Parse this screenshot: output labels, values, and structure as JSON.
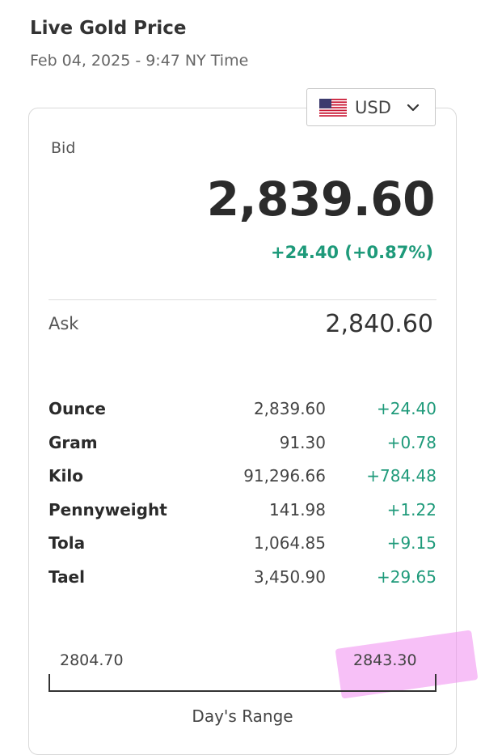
{
  "header": {
    "title": "Live Gold Price",
    "subtitle": "Feb 04, 2025 - 9:47 NY Time"
  },
  "currency": {
    "code": "USD",
    "flag_icon": "us-flag-icon",
    "dropdown_icon": "chevron-down-icon"
  },
  "quote": {
    "bid_label": "Bid",
    "bid": "2,839.60",
    "change": "+24.40 (+0.87%)",
    "ask_label": "Ask",
    "ask": "2,840.60"
  },
  "units": [
    {
      "unit": "Ounce",
      "price": "2,839.60",
      "change": "+24.40"
    },
    {
      "unit": "Gram",
      "price": "91.30",
      "change": "+0.78"
    },
    {
      "unit": "Kilo",
      "price": "91,296.66",
      "change": "+784.48"
    },
    {
      "unit": "Pennyweight",
      "price": "141.98",
      "change": "+1.22"
    },
    {
      "unit": "Tola",
      "price": "1,064.85",
      "change": "+9.15"
    },
    {
      "unit": "Tael",
      "price": "3,450.90",
      "change": "+29.65"
    }
  ],
  "range": {
    "low": "2804.70",
    "high": "2843.30",
    "label": "Day's Range"
  },
  "colors": {
    "positive": "#1e9a7a",
    "highlight": "#f08cf0"
  }
}
